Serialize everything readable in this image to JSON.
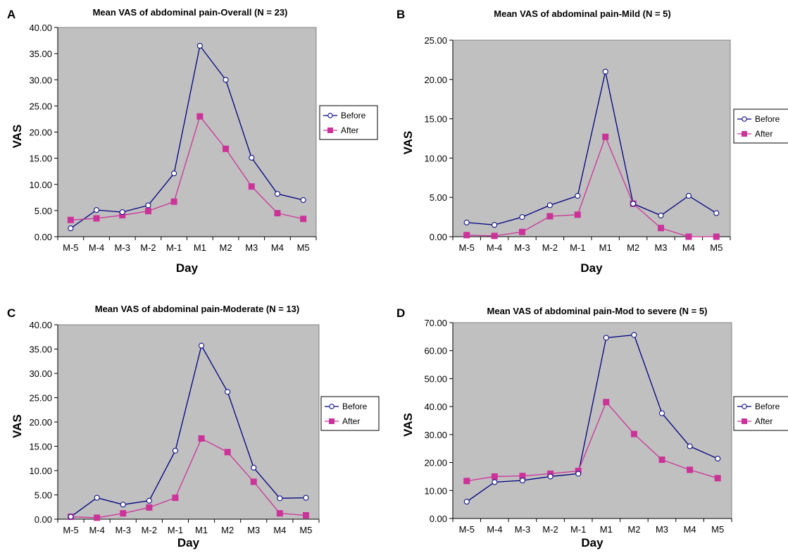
{
  "chart_data": [
    {
      "type": "line",
      "panel": "A",
      "title": "Mean VAS of abdominal pain-Overall (N = 23)",
      "xlabel": "Day",
      "ylabel": "VAS",
      "ylim": [
        0,
        40
      ],
      "y_step": 5,
      "categories": [
        "M-5",
        "M-4",
        "M-3",
        "M-2",
        "M-1",
        "M1",
        "M2",
        "M3",
        "M4",
        "M5"
      ],
      "series": [
        {
          "name": "Before",
          "values": [
            1.6,
            5.1,
            4.7,
            6.0,
            12.1,
            36.5,
            30.0,
            15.1,
            8.2,
            7.0
          ]
        },
        {
          "name": "After",
          "values": [
            3.2,
            3.5,
            4.1,
            4.9,
            6.7,
            23.0,
            16.8,
            9.6,
            4.5,
            3.4
          ]
        }
      ],
      "legend_position": "right",
      "grid": false
    },
    {
      "type": "line",
      "panel": "B",
      "title": "Mean VAS of abdominal pain-Mild (N = 5)",
      "xlabel": "Day",
      "ylabel": "VAS",
      "ylim": [
        0,
        25
      ],
      "y_step": 5,
      "categories": [
        "M-5",
        "M-4",
        "M-3",
        "M-2",
        "M-1",
        "M1",
        "M2",
        "M3",
        "M4",
        "M5"
      ],
      "series": [
        {
          "name": "Before",
          "values": [
            1.8,
            1.5,
            2.5,
            4.0,
            5.2,
            21.0,
            4.2,
            2.7,
            5.2,
            3.0
          ]
        },
        {
          "name": "After",
          "values": [
            0.2,
            0.1,
            0.6,
            2.6,
            2.8,
            12.7,
            4.2,
            1.1,
            0.0,
            0.0
          ]
        }
      ],
      "legend_position": "right",
      "grid": false
    },
    {
      "type": "line",
      "panel": "C",
      "title": "Mean VAS of abdominal pain-Moderate (N = 13)",
      "xlabel": "Day",
      "ylabel": "VAS",
      "ylim": [
        0,
        40
      ],
      "y_step": 5,
      "categories": [
        "M-5",
        "M-4",
        "M-3",
        "M-2",
        "M-1",
        "M1",
        "M2",
        "M3",
        "M4",
        "M5"
      ],
      "series": [
        {
          "name": "Before",
          "values": [
            0.5,
            4.4,
            3.0,
            3.8,
            14.1,
            35.7,
            26.2,
            10.6,
            4.3,
            4.4
          ]
        },
        {
          "name": "After",
          "values": [
            0.5,
            0.3,
            1.2,
            2.4,
            4.4,
            16.6,
            13.8,
            7.7,
            1.2,
            0.8
          ]
        }
      ],
      "legend_position": "right",
      "grid": false
    },
    {
      "type": "line",
      "panel": "D",
      "title": "Mean VAS of abdominal pain-Mod to severe (N = 5)",
      "xlabel": "Day",
      "ylabel": "VAS",
      "ylim": [
        0,
        70
      ],
      "y_step": 10,
      "categories": [
        "M-5",
        "M-4",
        "M-3",
        "M-2",
        "M-1",
        "M1",
        "M2",
        "M3",
        "M4",
        "M5"
      ],
      "series": [
        {
          "name": "Before",
          "values": [
            6.0,
            13.0,
            13.6,
            15.0,
            16.0,
            64.6,
            65.6,
            37.6,
            25.8,
            21.4
          ]
        },
        {
          "name": "After",
          "values": [
            13.4,
            15.0,
            15.2,
            16.0,
            17.0,
            41.6,
            30.2,
            21.0,
            17.4,
            14.4
          ]
        }
      ],
      "legend_position": "right",
      "grid": false
    }
  ],
  "colors": {
    "plot_background": "#c0c0c0",
    "before_line": "#000080",
    "before_marker_fill": "#ffffff",
    "after_line": "#cc3399",
    "after_marker_fill": "#cc3399",
    "axis": "#000000"
  },
  "markers": {
    "before": "open-circle",
    "after": "filled-square"
  }
}
